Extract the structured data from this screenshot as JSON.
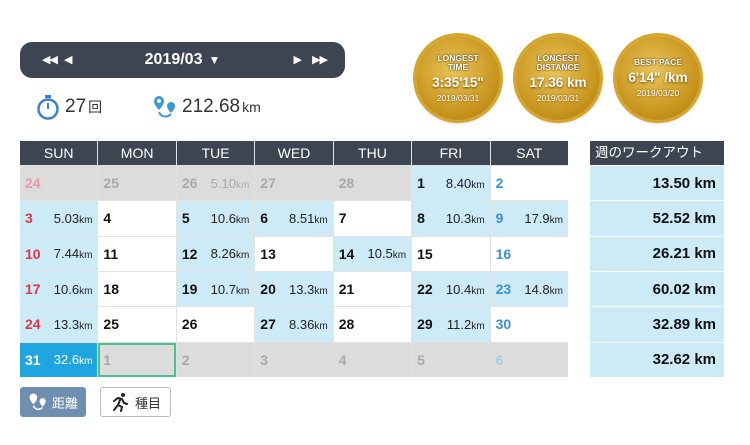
{
  "header": {
    "month": "2019/03"
  },
  "stats": {
    "sessions": "27",
    "sessions_unit": "回",
    "distance": "212.68",
    "distance_unit": "km"
  },
  "badges": [
    {
      "title": "LONGEST TIME",
      "value": "3:35'15\"",
      "date": "2019/03/31"
    },
    {
      "title": "LONGEST DISTANCE",
      "value": "17.36 km",
      "date": "2019/03/31"
    },
    {
      "title": "BEST PACE",
      "value": "6'14\" /km",
      "date": "2019/03/20"
    }
  ],
  "calendar": {
    "weekdays": [
      "SUN",
      "MON",
      "TUE",
      "WED",
      "THU",
      "FRI",
      "SAT"
    ],
    "unit": "km",
    "weeks": [
      [
        {
          "day": "24"
        },
        {
          "day": "25"
        },
        {
          "day": "26",
          "distance": "5.10"
        },
        {
          "day": "27"
        },
        {
          "day": "28"
        },
        {
          "day": "1",
          "distance": "8.40"
        },
        {
          "day": "2"
        }
      ],
      [
        {
          "day": "3",
          "distance": "5.03"
        },
        {
          "day": "4"
        },
        {
          "day": "5",
          "distance": "10.6"
        },
        {
          "day": "6",
          "distance": "8.51"
        },
        {
          "day": "7"
        },
        {
          "day": "8",
          "distance": "10.3"
        },
        {
          "day": "9",
          "distance": "17.9"
        }
      ],
      [
        {
          "day": "10",
          "distance": "7.44"
        },
        {
          "day": "11"
        },
        {
          "day": "12",
          "distance": "8.26"
        },
        {
          "day": "13"
        },
        {
          "day": "14",
          "distance": "10.5"
        },
        {
          "day": "15"
        },
        {
          "day": "16"
        }
      ],
      [
        {
          "day": "17",
          "distance": "10.6"
        },
        {
          "day": "18"
        },
        {
          "day": "19",
          "distance": "10.7"
        },
        {
          "day": "20",
          "distance": "13.3"
        },
        {
          "day": "21"
        },
        {
          "day": "22",
          "distance": "10.4"
        },
        {
          "day": "23",
          "distance": "14.8"
        }
      ],
      [
        {
          "day": "24",
          "distance": "13.3"
        },
        {
          "day": "25"
        },
        {
          "day": "26"
        },
        {
          "day": "27",
          "distance": "8.36"
        },
        {
          "day": "28"
        },
        {
          "day": "29",
          "distance": "11.2"
        },
        {
          "day": "30"
        }
      ],
      [
        {
          "day": "31",
          "distance": "32.6"
        },
        {
          "day": "1"
        },
        {
          "day": "2"
        },
        {
          "day": "3"
        },
        {
          "day": "4"
        },
        {
          "day": "5"
        },
        {
          "day": "6"
        }
      ]
    ]
  },
  "weekly": {
    "title": "週のワークアウト",
    "totals": [
      "13.50 km",
      "52.52 km",
      "26.21 km",
      "60.02 km",
      "32.89 km",
      "32.62 km"
    ]
  },
  "buttons": [
    {
      "label": "距離"
    },
    {
      "label": "種目"
    }
  ]
}
